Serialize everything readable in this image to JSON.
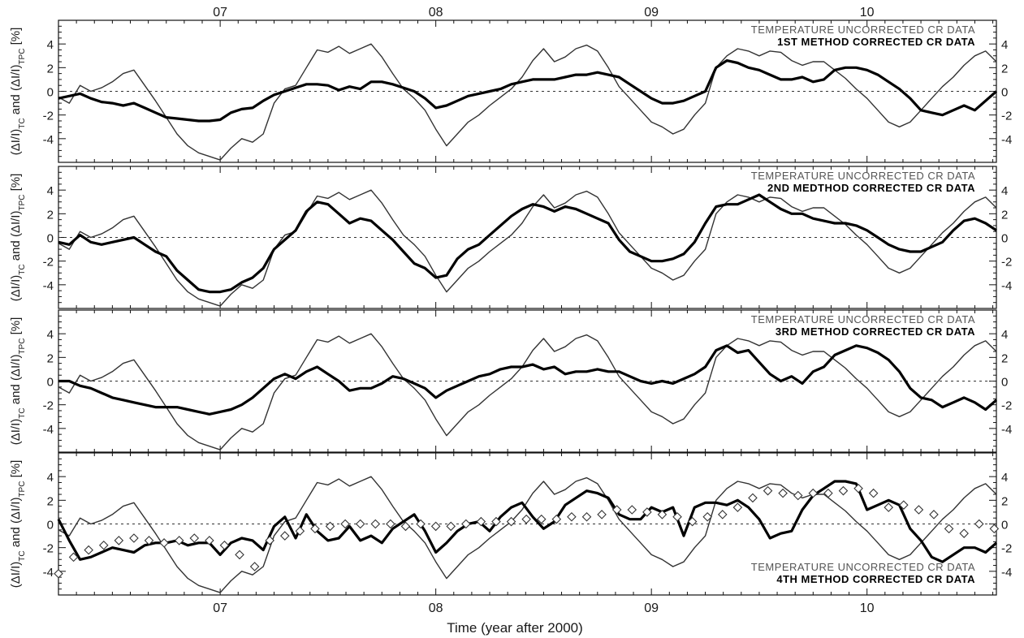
{
  "chart_data": {
    "type": "line",
    "title": "",
    "xlabel": "Time (year after 2000)",
    "xlim": [
      6.25,
      10.6
    ],
    "x_ticks": [
      {
        "value": 7,
        "label": "07"
      },
      {
        "value": 8,
        "label": "08"
      },
      {
        "value": 9,
        "label": "09"
      },
      {
        "value": 10,
        "label": "10"
      }
    ],
    "ylim": [
      -6,
      6
    ],
    "y_ticks": [
      -4,
      -2,
      0,
      2,
      4
    ],
    "zero_line": "dashed",
    "grid": false,
    "ylabel_parts": {
      "open": "(ΔI/I)",
      "sub1": "TC",
      "and": " and (ΔI/I)",
      "sub2": "TPC",
      "unit": " [%]"
    },
    "uncorrected": {
      "name": "TEMPERATURE UNCORRECTED CR DATA",
      "x": [
        6.25,
        6.3,
        6.35,
        6.4,
        6.45,
        6.5,
        6.55,
        6.6,
        6.65,
        6.7,
        6.75,
        6.8,
        6.85,
        6.9,
        6.95,
        7.0,
        7.05,
        7.1,
        7.15,
        7.2,
        7.25,
        7.3,
        7.35,
        7.4,
        7.45,
        7.5,
        7.55,
        7.6,
        7.65,
        7.7,
        7.75,
        7.8,
        7.85,
        7.9,
        7.95,
        8.0,
        8.05,
        8.1,
        8.15,
        8.2,
        8.25,
        8.3,
        8.35,
        8.4,
        8.45,
        8.5,
        8.55,
        8.6,
        8.65,
        8.7,
        8.75,
        8.8,
        8.85,
        8.9,
        8.95,
        9.0,
        9.05,
        9.1,
        9.15,
        9.2,
        9.25,
        9.3,
        9.35,
        9.4,
        9.45,
        9.5,
        9.55,
        9.6,
        9.65,
        9.7,
        9.75,
        9.8,
        9.85,
        9.9,
        9.95,
        10.0,
        10.05,
        10.1,
        10.15,
        10.2,
        10.25,
        10.3,
        10.35,
        10.4,
        10.45,
        10.5,
        10.55,
        10.6
      ],
      "y": [
        -0.5,
        -1.0,
        0.5,
        0.0,
        0.3,
        0.8,
        1.5,
        1.8,
        0.5,
        -0.8,
        -2.2,
        -3.6,
        -4.6,
        -5.2,
        -5.5,
        -5.8,
        -4.8,
        -4.0,
        -4.3,
        -3.6,
        -1.0,
        0.2,
        0.5,
        2.0,
        3.5,
        3.3,
        3.8,
        3.2,
        3.6,
        4.0,
        2.9,
        1.5,
        0.2,
        -0.6,
        -1.6,
        -3.2,
        -4.6,
        -3.6,
        -2.6,
        -2.0,
        -1.2,
        -0.5,
        0.2,
        1.2,
        2.6,
        3.6,
        2.5,
        2.9,
        3.6,
        3.9,
        3.4,
        2.0,
        0.4,
        -0.6,
        -1.6,
        -2.6,
        -3.0,
        -3.6,
        -3.2,
        -2.0,
        -1.0,
        2.0,
        3.0,
        3.6,
        3.4,
        3.0,
        3.4,
        3.3,
        2.6,
        2.2,
        2.5,
        2.5,
        1.8,
        1.1,
        0.2,
        -0.6,
        -1.6,
        -2.6,
        -3.0,
        -2.6,
        -1.6,
        -0.6,
        0.4,
        1.2,
        2.2,
        3.0,
        3.4,
        2.5
      ]
    },
    "panels": [
      {
        "name": "1ST METHOD CORRECTED CR DATA",
        "label_position": "top-right",
        "x": [
          6.25,
          6.3,
          6.35,
          6.4,
          6.45,
          6.5,
          6.55,
          6.6,
          6.65,
          6.7,
          6.75,
          6.8,
          6.85,
          6.9,
          6.95,
          7.0,
          7.05,
          7.1,
          7.15,
          7.2,
          7.25,
          7.3,
          7.35,
          7.4,
          7.45,
          7.5,
          7.55,
          7.6,
          7.65,
          7.7,
          7.75,
          7.8,
          7.85,
          7.9,
          7.95,
          8.0,
          8.05,
          8.1,
          8.15,
          8.2,
          8.25,
          8.3,
          8.35,
          8.4,
          8.45,
          8.5,
          8.55,
          8.6,
          8.65,
          8.7,
          8.75,
          8.8,
          8.85,
          8.9,
          8.95,
          9.0,
          9.05,
          9.1,
          9.15,
          9.2,
          9.25,
          9.3,
          9.35,
          9.4,
          9.45,
          9.5,
          9.55,
          9.6,
          9.65,
          9.7,
          9.75,
          9.8,
          9.85,
          9.9,
          9.95,
          10.0,
          10.05,
          10.1,
          10.15,
          10.2,
          10.25,
          10.3,
          10.35,
          10.4,
          10.45,
          10.5,
          10.55,
          10.6
        ],
        "y": [
          -0.6,
          -0.4,
          -0.2,
          -0.6,
          -0.9,
          -1.0,
          -1.2,
          -1.0,
          -1.4,
          -1.8,
          -2.2,
          -2.3,
          -2.4,
          -2.5,
          -2.5,
          -2.4,
          -1.8,
          -1.5,
          -1.4,
          -0.8,
          -0.3,
          0.0,
          0.3,
          0.6,
          0.6,
          0.5,
          0.1,
          0.4,
          0.2,
          0.8,
          0.8,
          0.6,
          0.3,
          0.0,
          -0.6,
          -1.4,
          -1.2,
          -0.8,
          -0.4,
          -0.2,
          0.0,
          0.2,
          0.6,
          0.8,
          1.0,
          1.0,
          1.0,
          1.2,
          1.4,
          1.4,
          1.6,
          1.4,
          1.2,
          0.6,
          0.0,
          -0.6,
          -1.0,
          -1.0,
          -0.8,
          -0.4,
          0.0,
          2.0,
          2.6,
          2.4,
          2.0,
          1.8,
          1.4,
          1.0,
          1.0,
          1.2,
          0.8,
          1.0,
          1.8,
          2.0,
          2.0,
          1.8,
          1.4,
          0.8,
          0.2,
          -0.6,
          -1.6,
          -1.8,
          -2.0,
          -1.6,
          -1.2,
          -1.6,
          -0.8,
          0.0
        ]
      },
      {
        "name": "2ND MEDTHOD CORRECTED CR DATA",
        "label_position": "top-right",
        "x": [
          6.25,
          6.3,
          6.35,
          6.4,
          6.45,
          6.5,
          6.55,
          6.6,
          6.65,
          6.7,
          6.75,
          6.8,
          6.85,
          6.9,
          6.95,
          7.0,
          7.05,
          7.1,
          7.15,
          7.2,
          7.25,
          7.3,
          7.35,
          7.4,
          7.45,
          7.5,
          7.55,
          7.6,
          7.65,
          7.7,
          7.75,
          7.8,
          7.85,
          7.9,
          7.95,
          8.0,
          8.05,
          8.1,
          8.15,
          8.2,
          8.25,
          8.3,
          8.35,
          8.4,
          8.45,
          8.5,
          8.55,
          8.6,
          8.65,
          8.7,
          8.75,
          8.8,
          8.85,
          8.9,
          8.95,
          9.0,
          9.05,
          9.1,
          9.15,
          9.2,
          9.25,
          9.3,
          9.35,
          9.4,
          9.45,
          9.5,
          9.55,
          9.6,
          9.65,
          9.7,
          9.75,
          9.8,
          9.85,
          9.9,
          9.95,
          10.0,
          10.05,
          10.1,
          10.15,
          10.2,
          10.25,
          10.3,
          10.35,
          10.4,
          10.45,
          10.5,
          10.55,
          10.6
        ],
        "y": [
          -0.4,
          -0.6,
          0.2,
          -0.4,
          -0.6,
          -0.4,
          -0.2,
          0.0,
          -0.6,
          -1.2,
          -1.6,
          -2.8,
          -3.6,
          -4.4,
          -4.6,
          -4.6,
          -4.4,
          -3.8,
          -3.4,
          -2.6,
          -1.0,
          -0.2,
          0.6,
          2.2,
          3.0,
          2.8,
          2.0,
          1.2,
          1.6,
          1.4,
          0.6,
          -0.2,
          -1.2,
          -2.2,
          -2.6,
          -3.4,
          -3.2,
          -1.8,
          -1.0,
          -0.6,
          0.2,
          1.0,
          1.8,
          2.4,
          2.8,
          2.6,
          2.2,
          2.6,
          2.4,
          2.0,
          1.6,
          1.2,
          -0.2,
          -1.2,
          -1.6,
          -2.0,
          -2.0,
          -1.8,
          -1.4,
          -0.4,
          1.2,
          2.6,
          2.8,
          2.8,
          3.2,
          3.6,
          3.0,
          2.4,
          2.0,
          2.0,
          1.6,
          1.4,
          1.2,
          1.2,
          1.0,
          0.6,
          0.0,
          -0.6,
          -1.0,
          -1.2,
          -1.2,
          -0.8,
          -0.4,
          0.6,
          1.4,
          1.6,
          1.2,
          0.6
        ]
      },
      {
        "name": "3RD METHOD CORRECTED CR DATA",
        "label_position": "top-right",
        "x": [
          6.25,
          6.3,
          6.35,
          6.4,
          6.45,
          6.5,
          6.55,
          6.6,
          6.65,
          6.7,
          6.75,
          6.8,
          6.85,
          6.9,
          6.95,
          7.0,
          7.05,
          7.1,
          7.15,
          7.2,
          7.25,
          7.3,
          7.35,
          7.4,
          7.45,
          7.5,
          7.55,
          7.6,
          7.65,
          7.7,
          7.75,
          7.8,
          7.85,
          7.9,
          7.95,
          8.0,
          8.05,
          8.1,
          8.15,
          8.2,
          8.25,
          8.3,
          8.35,
          8.4,
          8.45,
          8.5,
          8.55,
          8.6,
          8.65,
          8.7,
          8.75,
          8.8,
          8.85,
          8.9,
          8.95,
          9.0,
          9.05,
          9.1,
          9.15,
          9.2,
          9.25,
          9.3,
          9.35,
          9.4,
          9.45,
          9.5,
          9.55,
          9.6,
          9.65,
          9.7,
          9.75,
          9.8,
          9.85,
          9.9,
          9.95,
          10.0,
          10.05,
          10.1,
          10.15,
          10.2,
          10.25,
          10.3,
          10.35,
          10.4,
          10.45,
          10.5,
          10.55,
          10.6
        ],
        "y": [
          0.0,
          0.0,
          -0.4,
          -0.6,
          -1.0,
          -1.4,
          -1.6,
          -1.8,
          -2.0,
          -2.2,
          -2.2,
          -2.2,
          -2.4,
          -2.6,
          -2.8,
          -2.6,
          -2.4,
          -2.0,
          -1.4,
          -0.6,
          0.2,
          0.6,
          0.2,
          0.8,
          1.2,
          0.6,
          0.0,
          -0.8,
          -0.6,
          -0.6,
          -0.2,
          0.4,
          0.2,
          -0.2,
          -0.6,
          -1.4,
          -0.8,
          -0.4,
          0.0,
          0.4,
          0.6,
          1.0,
          1.2,
          1.2,
          1.4,
          1.0,
          1.2,
          0.6,
          0.8,
          0.8,
          1.0,
          0.8,
          0.8,
          0.4,
          0.0,
          -0.2,
          0.0,
          -0.2,
          0.2,
          0.6,
          1.2,
          2.6,
          3.0,
          2.4,
          2.6,
          1.6,
          0.6,
          0.0,
          0.4,
          -0.2,
          0.8,
          1.2,
          2.2,
          2.6,
          3.0,
          2.8,
          2.4,
          1.8,
          0.8,
          -0.6,
          -1.4,
          -1.6,
          -2.2,
          -1.8,
          -1.4,
          -1.8,
          -2.4,
          -1.6
        ]
      },
      {
        "name": "4TH METHOD CORRECTED CR DATA",
        "label_position": "bottom-right",
        "x": [
          6.25,
          6.3,
          6.35,
          6.4,
          6.45,
          6.5,
          6.55,
          6.6,
          6.65,
          6.7,
          6.75,
          6.8,
          6.85,
          6.9,
          6.95,
          7.0,
          7.05,
          7.1,
          7.15,
          7.2,
          7.25,
          7.3,
          7.35,
          7.4,
          7.45,
          7.5,
          7.55,
          7.6,
          7.65,
          7.7,
          7.75,
          7.8,
          7.85,
          7.9,
          7.95,
          8.0,
          8.05,
          8.1,
          8.15,
          8.2,
          8.25,
          8.3,
          8.35,
          8.4,
          8.45,
          8.5,
          8.55,
          8.6,
          8.65,
          8.7,
          8.75,
          8.8,
          8.85,
          8.9,
          8.95,
          9.0,
          9.05,
          9.1,
          9.15,
          9.2,
          9.25,
          9.3,
          9.35,
          9.4,
          9.45,
          9.5,
          9.55,
          9.6,
          9.65,
          9.7,
          9.75,
          9.8,
          9.85,
          9.9,
          9.95,
          10.0,
          10.05,
          10.1,
          10.15,
          10.2,
          10.25,
          10.3,
          10.35,
          10.4,
          10.45,
          10.5,
          10.55,
          10.6
        ],
        "y": [
          0.4,
          -1.4,
          -3.0,
          -2.8,
          -2.4,
          -2.0,
          -2.2,
          -2.4,
          -1.8,
          -1.6,
          -1.6,
          -1.4,
          -1.8,
          -1.6,
          -1.6,
          -2.6,
          -1.6,
          -1.2,
          -1.4,
          -2.2,
          -0.2,
          0.6,
          -1.2,
          0.8,
          -0.6,
          -1.4,
          -1.2,
          -0.2,
          -1.4,
          -1.0,
          -1.6,
          -0.4,
          0.2,
          0.8,
          -0.6,
          -2.4,
          -1.6,
          -0.6,
          0.0,
          0.2,
          -0.6,
          0.6,
          1.4,
          1.8,
          0.6,
          -0.4,
          0.2,
          1.6,
          2.2,
          2.8,
          2.6,
          2.2,
          0.8,
          0.4,
          0.4,
          1.4,
          1.0,
          1.4,
          -1.0,
          1.4,
          1.8,
          1.8,
          1.6,
          2.0,
          1.4,
          0.4,
          -1.2,
          -0.8,
          -0.6,
          1.2,
          2.4,
          3.0,
          3.6,
          3.6,
          3.4,
          1.2,
          1.6,
          2.0,
          1.6,
          -0.4,
          -1.4,
          -2.8,
          -3.2,
          -2.6,
          -2.0,
          -2.0,
          -2.4,
          -1.6
        ]
      }
    ],
    "panel4_diamonds": {
      "x": [
        6.25,
        6.32,
        6.39,
        6.46,
        6.53,
        6.6,
        6.67,
        6.74,
        6.81,
        6.88,
        6.95,
        7.02,
        7.09,
        7.16,
        7.23,
        7.3,
        7.37,
        7.44,
        7.51,
        7.58,
        7.65,
        7.72,
        7.79,
        7.86,
        7.93,
        8.0,
        8.07,
        8.14,
        8.21,
        8.28,
        8.35,
        8.42,
        8.49,
        8.56,
        8.63,
        8.7,
        8.77,
        8.84,
        8.91,
        8.98,
        9.05,
        9.12,
        9.19,
        9.26,
        9.33,
        9.4,
        9.47,
        9.54,
        9.61,
        9.68,
        9.75,
        9.82,
        9.89,
        9.96,
        10.03,
        10.1,
        10.17,
        10.24,
        10.31,
        10.38,
        10.45,
        10.52,
        10.59
      ],
      "y": [
        -4.2,
        -2.8,
        -2.2,
        -1.8,
        -1.4,
        -1.2,
        -1.4,
        -1.6,
        -1.4,
        -1.2,
        -1.4,
        -1.8,
        -2.6,
        -3.6,
        -1.4,
        -1.0,
        -0.6,
        -0.4,
        -0.2,
        0.0,
        0.0,
        0.0,
        0.0,
        -0.2,
        0.0,
        -0.2,
        -0.2,
        0.0,
        0.2,
        0.2,
        0.2,
        0.4,
        0.4,
        0.4,
        0.6,
        0.6,
        0.8,
        1.2,
        1.2,
        1.0,
        0.8,
        0.6,
        0.2,
        0.6,
        0.8,
        1.4,
        2.2,
        2.8,
        2.6,
        2.4,
        2.6,
        2.6,
        2.8,
        3.0,
        2.6,
        1.4,
        1.6,
        1.2,
        0.8,
        -0.4,
        -0.8,
        0.0,
        -0.4
      ]
    }
  }
}
